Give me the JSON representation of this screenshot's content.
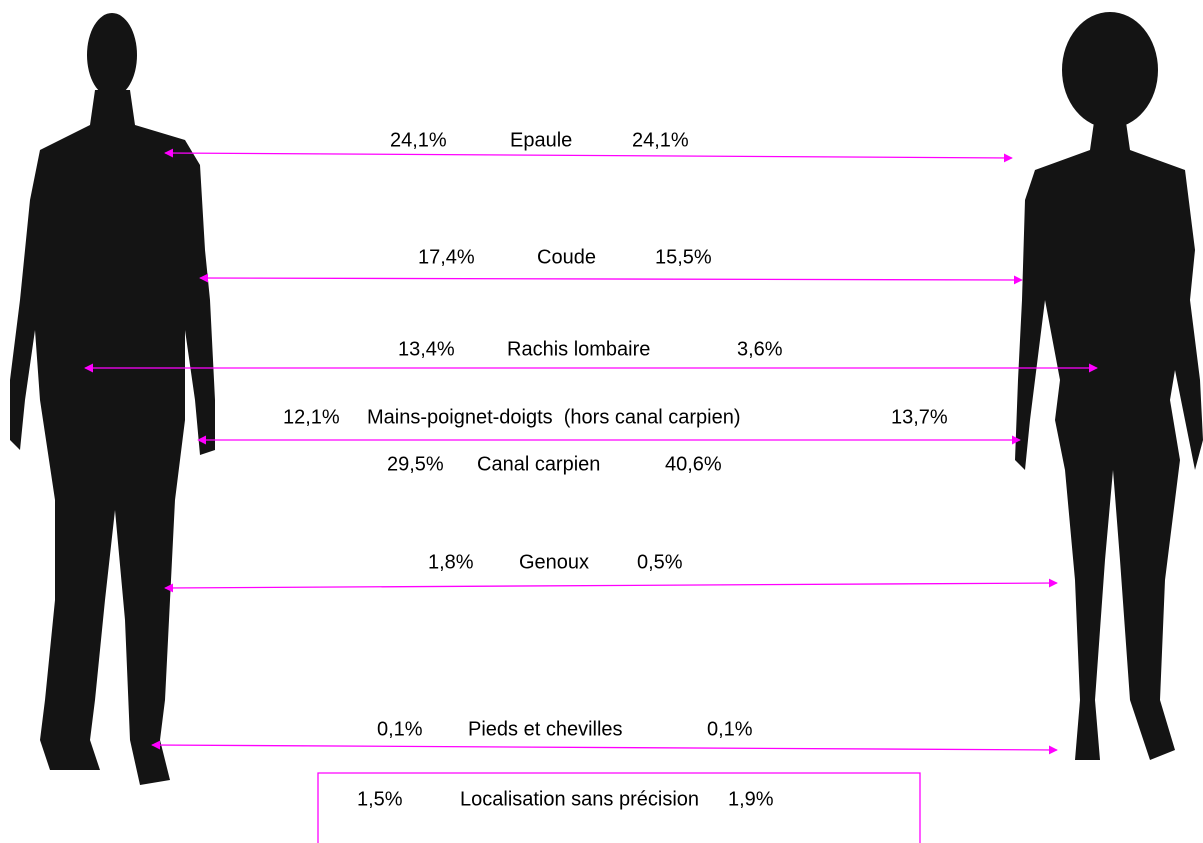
{
  "rows": [
    {
      "left": "24,1%",
      "label": "Epaule",
      "right": "24,1%"
    },
    {
      "left": "17,4%",
      "label": "Coude",
      "right": "15,5%"
    },
    {
      "left": "13,4%",
      "label": "Rachis lombaire",
      "right": "3,6%"
    },
    {
      "left": "12,1%",
      "label": "Mains-poignet-doigts  (hors canal carpien)",
      "right": "13,7%"
    },
    {
      "left": "29,5%",
      "label": "Canal carpien",
      "right": "40,6%"
    },
    {
      "left": "1,8%",
      "label": "Genoux",
      "right": "0,5%"
    },
    {
      "left": "0,1%",
      "label": "Pieds et chevilles",
      "right": "0,1%"
    }
  ],
  "footer": {
    "left": "1,5%",
    "label": "Localisation sans précision",
    "right": "1,9%"
  }
}
